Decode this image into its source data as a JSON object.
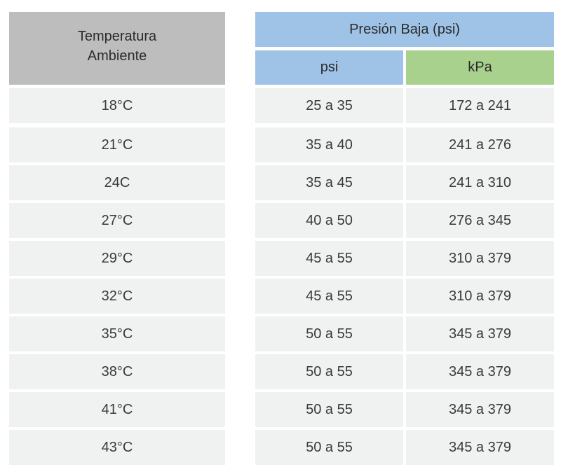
{
  "header": {
    "temp_line1": "Temperatura",
    "temp_line2": "Ambiente",
    "presion": "Presión Baja (psi)",
    "psi": "psi",
    "kpa": "kPa"
  },
  "rows": [
    {
      "temp": "18°C",
      "psi": "25 a 35",
      "kpa": "172 a 241"
    },
    {
      "temp": "21°C",
      "psi": "35 a 40",
      "kpa": "241 a 276"
    },
    {
      "temp": "24C",
      "psi": "35 a 45",
      "kpa": "241 a 310"
    },
    {
      "temp": "27°C",
      "psi": "40 a 50",
      "kpa": "276 a 345"
    },
    {
      "temp": "29°C",
      "psi": "45 a 55",
      "kpa": "310 a 379"
    },
    {
      "temp": "32°C",
      "psi": "45 a 55",
      "kpa": "310 a 379"
    },
    {
      "temp": "35°C",
      "psi": "50 a 55",
      "kpa": "345 a 379"
    },
    {
      "temp": "38°C",
      "psi": "50 a 55",
      "kpa": "345 a 379"
    },
    {
      "temp": "41°C",
      "psi": "50 a 55",
      "kpa": "345 a 379"
    },
    {
      "temp": "43°C",
      "psi": "50 a 55",
      "kpa": "345 a 379"
    }
  ]
}
